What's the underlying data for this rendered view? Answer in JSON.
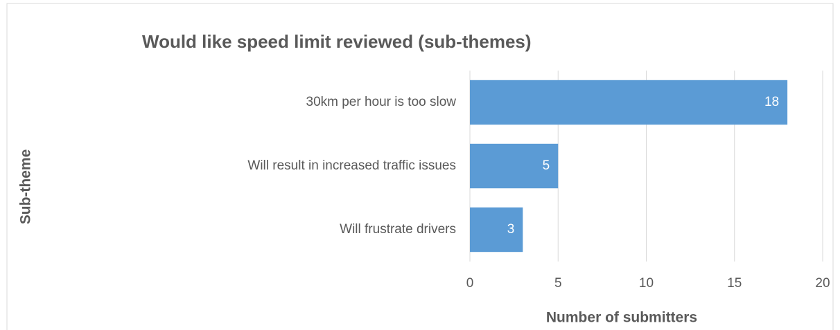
{
  "chart_data": {
    "type": "bar",
    "orientation": "horizontal",
    "title": "Would like speed limit reviewed (sub-themes)",
    "x_label": "Number of submitters",
    "y_label": "Sub-theme",
    "categories": [
      "30km per hour is too slow",
      "Will result in increased traffic issues",
      "Will frustrate drivers"
    ],
    "values": [
      18,
      5,
      3
    ],
    "color": "#5b9bd5",
    "xlim": [
      0,
      20
    ],
    "xticks": [
      0,
      5,
      10,
      15,
      20
    ],
    "grid": true
  }
}
